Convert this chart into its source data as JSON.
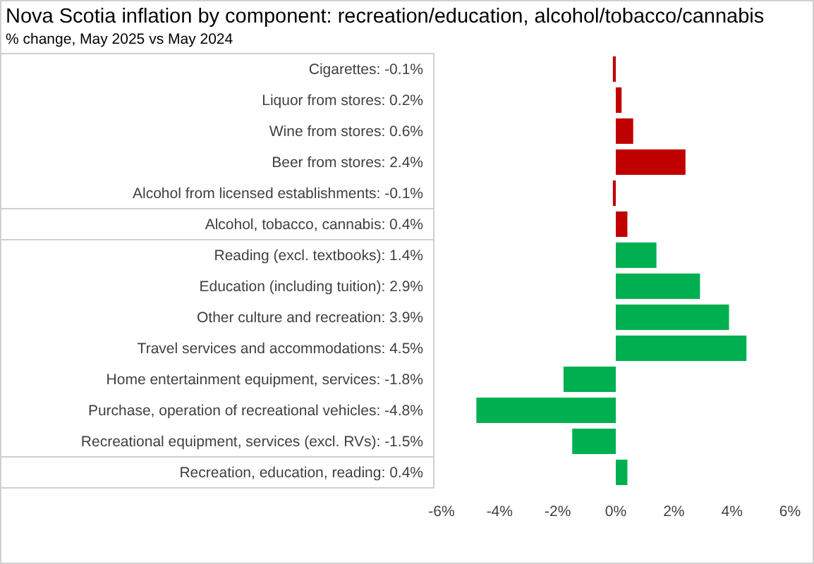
{
  "chart_data": {
    "type": "bar",
    "orientation": "horizontal",
    "title": "Nova Scotia inflation by component: recreation/education,  alcohol/tobacco/cannabis",
    "subtitle": "% change, May 2025 vs May 2024",
    "categories": [
      "Cigarettes: -0.1%",
      "Liquor from stores: 0.2%",
      "Wine from stores: 0.6%",
      "Beer from stores: 2.4%",
      "Alcohol from licensed establishments: -0.1%",
      "Alcohol, tobacco, cannabis: 0.4%",
      "Reading (excl. textbooks): 1.4%",
      "Education (including tuition): 2.9%",
      "Other culture and recreation: 3.9%",
      "Travel services and accommodations: 4.5%",
      "Home entertainment equipment, services: -1.8%",
      "Purchase, operation of recreational vehicles: -4.8%",
      "Recreational equipment, services (excl. RVs): -1.5%",
      "Recreation, education, reading: 0.4%"
    ],
    "values": [
      -0.1,
      0.2,
      0.6,
      2.4,
      -0.1,
      0.4,
      1.4,
      2.9,
      3.9,
      4.5,
      -1.8,
      -4.8,
      -1.5,
      0.4
    ],
    "colors": [
      "#c00000",
      "#c00000",
      "#c00000",
      "#c00000",
      "#c00000",
      "#c00000",
      "#00b050",
      "#00b050",
      "#00b050",
      "#00b050",
      "#00b050",
      "#00b050",
      "#00b050",
      "#00b050"
    ],
    "xlim": [
      -6,
      6
    ],
    "xticks": [
      {
        "value": -6,
        "label": "-6%"
      },
      {
        "value": -4,
        "label": "-4%"
      },
      {
        "value": -2,
        "label": "-2%"
      },
      {
        "value": 0,
        "label": "0%"
      },
      {
        "value": 2,
        "label": "2%"
      },
      {
        "value": 4,
        "label": "4%"
      },
      {
        "value": 6,
        "label": "6%"
      }
    ],
    "grid": false
  }
}
